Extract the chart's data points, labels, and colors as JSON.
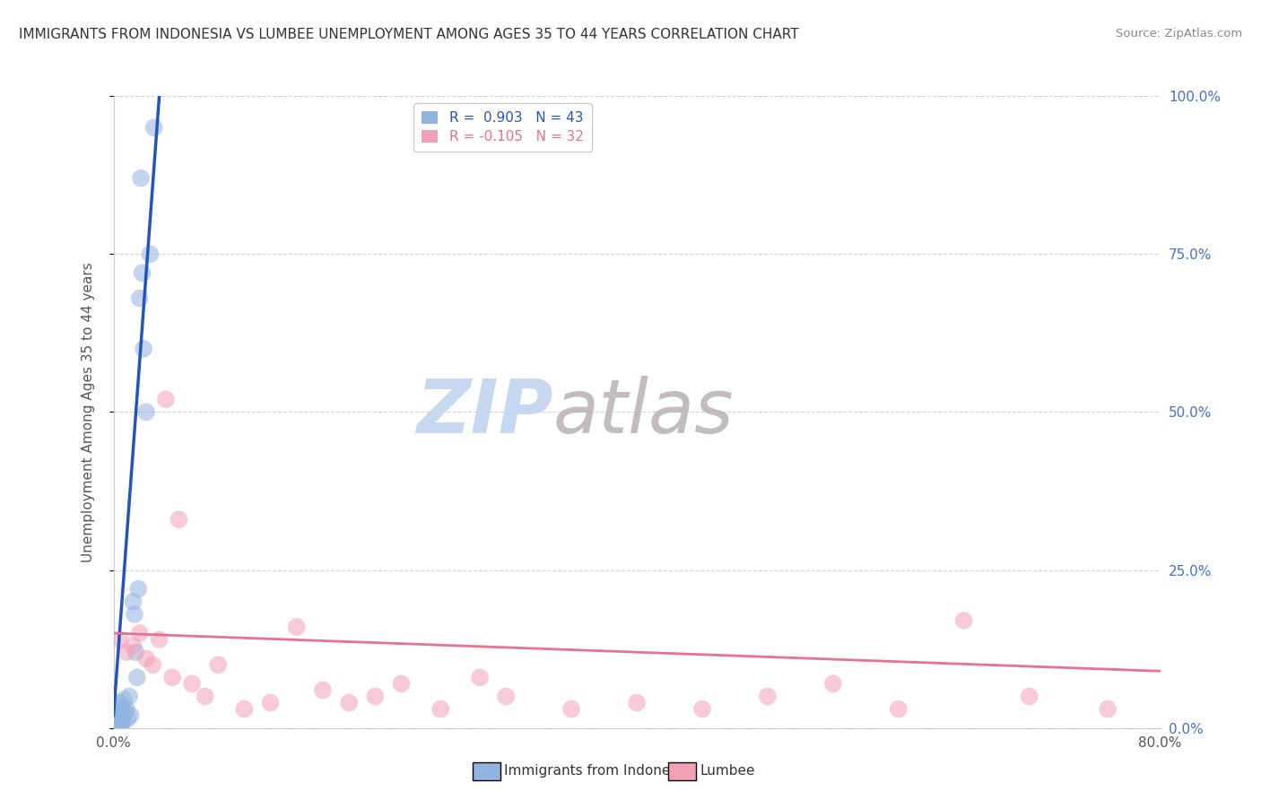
{
  "title": "IMMIGRANTS FROM INDONESIA VS LUMBEE UNEMPLOYMENT AMONG AGES 35 TO 44 YEARS CORRELATION CHART",
  "source": "Source: ZipAtlas.com",
  "ylabel": "Unemployment Among Ages 35 to 44 years",
  "legend_line1": "R =  0.903   N = 43",
  "legend_line2": "R = -0.105   N = 32",
  "blue_scatter_x": [
    0.1,
    0.1,
    0.1,
    0.15,
    0.15,
    0.2,
    0.2,
    0.2,
    0.25,
    0.25,
    0.3,
    0.3,
    0.3,
    0.35,
    0.35,
    0.4,
    0.4,
    0.45,
    0.5,
    0.5,
    0.55,
    0.6,
    0.6,
    0.7,
    0.7,
    0.8,
    0.9,
    1.0,
    1.1,
    1.2,
    1.3,
    1.5,
    1.6,
    1.7,
    1.8,
    1.9,
    2.0,
    2.1,
    2.2,
    2.3,
    2.5,
    2.8,
    3.1
  ],
  "blue_scatter_y": [
    0.5,
    1.0,
    2.0,
    0.5,
    1.5,
    1.0,
    2.5,
    0.5,
    3.0,
    1.5,
    0.5,
    2.0,
    1.0,
    3.5,
    0.5,
    2.5,
    1.5,
    1.0,
    4.0,
    0.5,
    1.5,
    3.0,
    0.5,
    2.0,
    1.0,
    4.5,
    2.5,
    3.0,
    1.5,
    5.0,
    2.0,
    20.0,
    18.0,
    12.0,
    8.0,
    22.0,
    68.0,
    87.0,
    72.0,
    60.0,
    50.0,
    75.0,
    95.0
  ],
  "pink_scatter_x": [
    0.5,
    1.0,
    1.5,
    2.0,
    2.5,
    3.0,
    3.5,
    4.0,
    4.5,
    5.0,
    6.0,
    7.0,
    8.0,
    10.0,
    12.0,
    14.0,
    16.0,
    18.0,
    20.0,
    22.0,
    25.0,
    28.0,
    30.0,
    35.0,
    40.0,
    45.0,
    50.0,
    55.0,
    60.0,
    65.0,
    70.0,
    76.0
  ],
  "pink_scatter_y": [
    14.0,
    12.0,
    13.0,
    15.0,
    11.0,
    10.0,
    14.0,
    52.0,
    8.0,
    33.0,
    7.0,
    5.0,
    10.0,
    3.0,
    4.0,
    16.0,
    6.0,
    4.0,
    5.0,
    7.0,
    3.0,
    8.0,
    5.0,
    3.0,
    4.0,
    3.0,
    5.0,
    7.0,
    3.0,
    17.0,
    5.0,
    3.0
  ],
  "blue_line_x": [
    0.0,
    3.5
  ],
  "blue_line_y": [
    2.0,
    100.0
  ],
  "pink_line_x": [
    0.0,
    80.0
  ],
  "pink_line_y": [
    15.0,
    9.0
  ],
  "blue_color": "#92b4e0",
  "pink_color": "#f4a0b8",
  "blue_line_color": "#2255bb",
  "pink_line_color": "#e87090",
  "background_color": "#ffffff",
  "grid_color": "#cccccc",
  "title_color": "#333333",
  "watermark_zip_color": "#c5d8ef",
  "watermark_atlas_color": "#c0bcc0",
  "xlim": [
    0.0,
    80.0
  ],
  "ylim": [
    0.0,
    100.0
  ],
  "right_tick_color": "#4472c4"
}
